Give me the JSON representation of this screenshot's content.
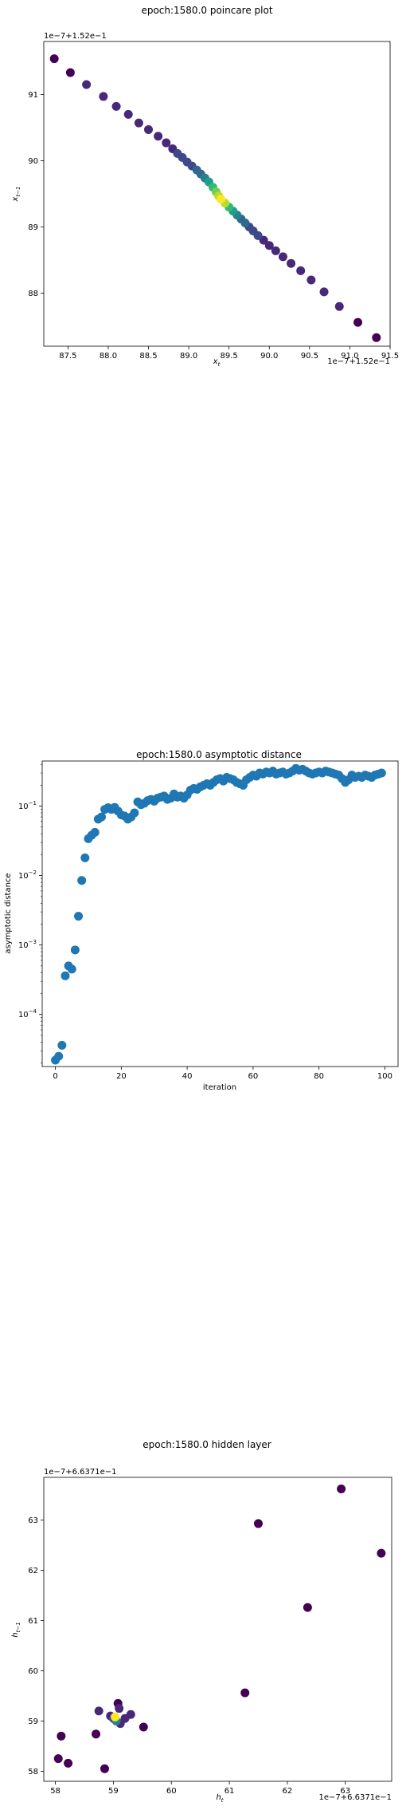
{
  "chart_data": [
    {
      "type": "scatter",
      "title": "epoch:1580.0 poincare plot",
      "xlabel_base": "x",
      "xlabel_sub": "t",
      "ylabel_base": "x",
      "ylabel_sub": "t−1",
      "x_offset_text": "1e−7+1.52e−1",
      "y_offset_text": "1e−7+1.52e−1",
      "xlim": [
        87.2,
        91.5
      ],
      "ylim": [
        87.2,
        91.8
      ],
      "xticks": [
        87.5,
        88.0,
        88.5,
        89.0,
        89.5,
        90.0,
        90.5,
        91.0,
        91.5
      ],
      "yticks": [
        88,
        89,
        90,
        91
      ],
      "xtick_labels": [
        "87.5",
        "88.0",
        "88.5",
        "89.0",
        "89.5",
        "90.0",
        "90.5",
        "91.0",
        "91.5"
      ],
      "ytick_labels": [
        "88",
        "89",
        "90",
        "91"
      ],
      "colormap": "viridis",
      "points": [
        {
          "x": 87.33,
          "y": 91.54,
          "c": 0.0
        },
        {
          "x": 87.53,
          "y": 91.33,
          "c": 0.05
        },
        {
          "x": 87.73,
          "y": 91.15,
          "c": 0.08
        },
        {
          "x": 87.94,
          "y": 90.97,
          "c": 0.08
        },
        {
          "x": 88.1,
          "y": 90.82,
          "c": 0.1
        },
        {
          "x": 88.25,
          "y": 90.7,
          "c": 0.1
        },
        {
          "x": 88.38,
          "y": 90.57,
          "c": 0.12
        },
        {
          "x": 88.5,
          "y": 90.47,
          "c": 0.12
        },
        {
          "x": 88.62,
          "y": 90.37,
          "c": 0.14
        },
        {
          "x": 88.72,
          "y": 90.27,
          "c": 0.15
        },
        {
          "x": 88.8,
          "y": 90.18,
          "c": 0.16
        },
        {
          "x": 88.86,
          "y": 90.11,
          "c": 0.18
        },
        {
          "x": 88.92,
          "y": 90.05,
          "c": 0.2
        },
        {
          "x": 88.98,
          "y": 89.98,
          "c": 0.22
        },
        {
          "x": 89.04,
          "y": 89.92,
          "c": 0.26
        },
        {
          "x": 89.1,
          "y": 89.86,
          "c": 0.3
        },
        {
          "x": 89.15,
          "y": 89.8,
          "c": 0.35
        },
        {
          "x": 89.2,
          "y": 89.74,
          "c": 0.42
        },
        {
          "x": 89.25,
          "y": 89.68,
          "c": 0.5
        },
        {
          "x": 89.3,
          "y": 89.6,
          "c": 0.62
        },
        {
          "x": 89.34,
          "y": 89.53,
          "c": 0.75
        },
        {
          "x": 89.37,
          "y": 89.47,
          "c": 0.88
        },
        {
          "x": 89.4,
          "y": 89.42,
          "c": 1.0
        },
        {
          "x": 89.45,
          "y": 89.36,
          "c": 0.85
        },
        {
          "x": 89.5,
          "y": 89.3,
          "c": 0.7
        },
        {
          "x": 89.55,
          "y": 89.24,
          "c": 0.55
        },
        {
          "x": 89.6,
          "y": 89.18,
          "c": 0.45
        },
        {
          "x": 89.65,
          "y": 89.12,
          "c": 0.36
        },
        {
          "x": 89.7,
          "y": 89.06,
          "c": 0.28
        },
        {
          "x": 89.75,
          "y": 89.0,
          "c": 0.22
        },
        {
          "x": 89.8,
          "y": 88.94,
          "c": 0.19
        },
        {
          "x": 89.86,
          "y": 88.87,
          "c": 0.17
        },
        {
          "x": 89.93,
          "y": 88.8,
          "c": 0.15
        },
        {
          "x": 90.0,
          "y": 88.72,
          "c": 0.14
        },
        {
          "x": 90.08,
          "y": 88.64,
          "c": 0.13
        },
        {
          "x": 90.17,
          "y": 88.55,
          "c": 0.12
        },
        {
          "x": 90.27,
          "y": 88.45,
          "c": 0.11
        },
        {
          "x": 90.39,
          "y": 88.34,
          "c": 0.1
        },
        {
          "x": 90.52,
          "y": 88.2,
          "c": 0.09
        },
        {
          "x": 90.68,
          "y": 88.02,
          "c": 0.08
        },
        {
          "x": 90.87,
          "y": 87.8,
          "c": 0.06
        },
        {
          "x": 91.1,
          "y": 87.56,
          "c": 0.04
        },
        {
          "x": 91.33,
          "y": 87.33,
          "c": 0.0
        }
      ]
    },
    {
      "type": "scatter",
      "title": "epoch:1580.0 asymptotic distance",
      "xlabel": "iteration",
      "ylabel": "asymptotic distance",
      "yscale": "log",
      "xlim": [
        -4,
        104
      ],
      "ylim_log10": [
        -4.75,
        -0.35
      ],
      "xticks": [
        0,
        20,
        40,
        60,
        80,
        100
      ],
      "xtick_labels": [
        "0",
        "20",
        "40",
        "60",
        "80",
        "100"
      ],
      "ytick_exponents": [
        -4,
        -3,
        -2,
        -1
      ],
      "color": "#1f77b4",
      "x": [
        0,
        1,
        2,
        3,
        4,
        5,
        6,
        7,
        8,
        9,
        10,
        11,
        12,
        13,
        14,
        15,
        16,
        17,
        18,
        19,
        20,
        21,
        22,
        23,
        24,
        25,
        26,
        27,
        28,
        29,
        30,
        31,
        32,
        33,
        34,
        35,
        36,
        37,
        38,
        39,
        40,
        41,
        42,
        43,
        44,
        45,
        46,
        47,
        48,
        49,
        50,
        51,
        52,
        53,
        54,
        55,
        56,
        57,
        58,
        59,
        60,
        61,
        62,
        63,
        64,
        65,
        66,
        67,
        68,
        69,
        70,
        71,
        72,
        73,
        74,
        75,
        76,
        77,
        78,
        79,
        80,
        81,
        82,
        83,
        84,
        85,
        86,
        87,
        88,
        89,
        90,
        91,
        92,
        93,
        94,
        95,
        96,
        97,
        98,
        99
      ],
      "y": [
        2.2e-05,
        2.5e-05,
        3.6e-05,
        0.00036,
        0.0005,
        0.00045,
        0.00085,
        0.0026,
        0.0085,
        0.018,
        0.034,
        0.038,
        0.042,
        0.065,
        0.07,
        0.09,
        0.095,
        0.09,
        0.096,
        0.085,
        0.075,
        0.072,
        0.065,
        0.07,
        0.08,
        0.115,
        0.105,
        0.11,
        0.12,
        0.125,
        0.118,
        0.13,
        0.135,
        0.14,
        0.125,
        0.13,
        0.15,
        0.135,
        0.14,
        0.13,
        0.145,
        0.17,
        0.18,
        0.175,
        0.19,
        0.2,
        0.21,
        0.2,
        0.22,
        0.24,
        0.25,
        0.23,
        0.26,
        0.25,
        0.24,
        0.22,
        0.21,
        0.2,
        0.24,
        0.26,
        0.28,
        0.27,
        0.3,
        0.29,
        0.31,
        0.3,
        0.32,
        0.29,
        0.3,
        0.31,
        0.29,
        0.3,
        0.32,
        0.35,
        0.33,
        0.34,
        0.32,
        0.3,
        0.29,
        0.3,
        0.31,
        0.3,
        0.32,
        0.31,
        0.3,
        0.29,
        0.28,
        0.25,
        0.22,
        0.24,
        0.28,
        0.26,
        0.27,
        0.26,
        0.28,
        0.27,
        0.26,
        0.28,
        0.29,
        0.3
      ]
    },
    {
      "type": "scatter",
      "title": "epoch:1580.0 hidden layer",
      "xlabel_base": "h",
      "xlabel_sub": "t",
      "ylabel_base": "h",
      "ylabel_sub": "t−1",
      "x_offset_text": "1e−7+6.6371e−1",
      "y_offset_text": "1e−7+6.6371e−1",
      "xlim": [
        57.8,
        63.8
      ],
      "ylim": [
        57.8,
        63.85
      ],
      "xticks": [
        58,
        59,
        60,
        61,
        62,
        63
      ],
      "yticks": [
        58,
        59,
        60,
        61,
        62,
        63
      ],
      "xtick_labels": [
        "58",
        "59",
        "60",
        "61",
        "62",
        "63"
      ],
      "ytick_labels": [
        "58",
        "59",
        "60",
        "61",
        "62",
        "63"
      ],
      "colormap": "viridis",
      "points": [
        {
          "x": 58.05,
          "y": 58.25,
          "c": 0.0
        },
        {
          "x": 58.1,
          "y": 58.7,
          "c": 0.05
        },
        {
          "x": 58.22,
          "y": 58.16,
          "c": 0.0
        },
        {
          "x": 58.7,
          "y": 58.74,
          "c": 0.05
        },
        {
          "x": 58.75,
          "y": 59.2,
          "c": 0.1
        },
        {
          "x": 58.85,
          "y": 58.05,
          "c": 0.0
        },
        {
          "x": 58.95,
          "y": 59.1,
          "c": 0.1
        },
        {
          "x": 59.0,
          "y": 59.05,
          "c": 0.25
        },
        {
          "x": 59.05,
          "y": 59.0,
          "c": 0.4
        },
        {
          "x": 59.08,
          "y": 59.35,
          "c": 0.05
        },
        {
          "x": 59.1,
          "y": 59.25,
          "c": 0.1
        },
        {
          "x": 59.12,
          "y": 58.95,
          "c": 0.1
        },
        {
          "x": 59.2,
          "y": 59.05,
          "c": 0.15
        },
        {
          "x": 59.3,
          "y": 59.13,
          "c": 0.08
        },
        {
          "x": 59.03,
          "y": 59.08,
          "c": 1.0
        },
        {
          "x": 59.52,
          "y": 58.88,
          "c": 0.05
        },
        {
          "x": 61.27,
          "y": 59.56,
          "c": 0.05
        },
        {
          "x": 61.5,
          "y": 62.93,
          "c": 0.0
        },
        {
          "x": 62.35,
          "y": 61.26,
          "c": 0.05
        },
        {
          "x": 62.93,
          "y": 63.62,
          "c": 0.0
        },
        {
          "x": 63.62,
          "y": 62.34,
          "c": 0.0
        }
      ]
    }
  ]
}
